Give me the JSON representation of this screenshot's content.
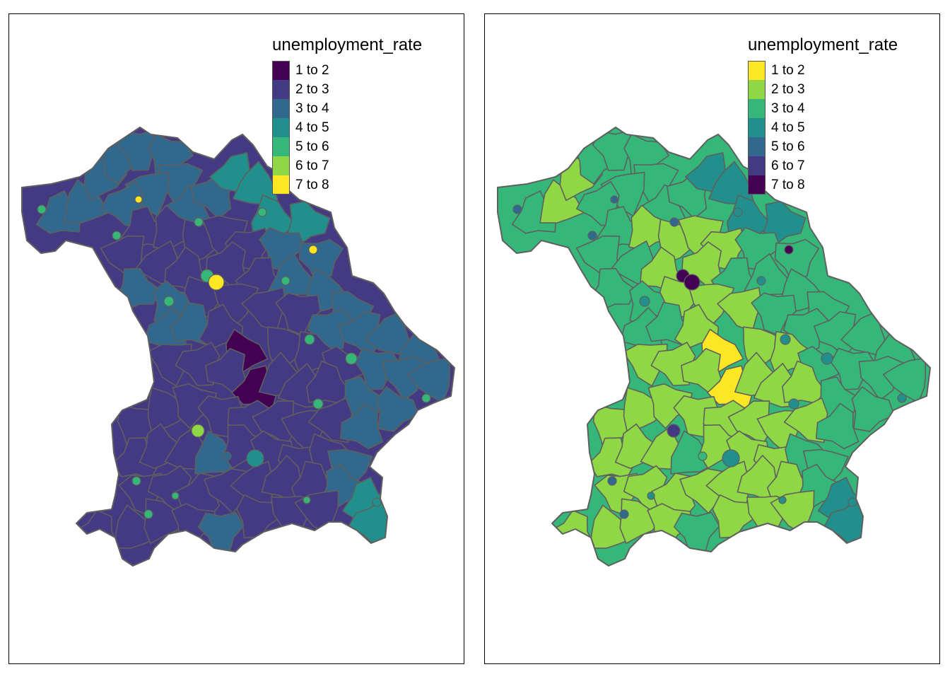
{
  "maps": [
    {
      "id": "left",
      "legend_title": "unemployment_rate",
      "palette": "viridis",
      "classes": [
        {
          "label": "1 to 2",
          "color": "#440154"
        },
        {
          "label": "2 to 3",
          "color": "#443A83"
        },
        {
          "label": "3 to 4",
          "color": "#31688E"
        },
        {
          "label": "4 to 5",
          "color": "#21908C"
        },
        {
          "label": "5 to 6",
          "color": "#35B779"
        },
        {
          "label": "6 to 7",
          "color": "#8FD744"
        },
        {
          "label": "7 to 8",
          "color": "#FDE725"
        }
      ]
    },
    {
      "id": "right",
      "legend_title": "unemployment_rate",
      "palette": "viridis-reversed",
      "classes": [
        {
          "label": "1 to 2",
          "color": "#FDE725"
        },
        {
          "label": "2 to 3",
          "color": "#8FD744"
        },
        {
          "label": "3 to 4",
          "color": "#35B779"
        },
        {
          "label": "4 to 5",
          "color": "#21908C"
        },
        {
          "label": "5 to 6",
          "color": "#31688E"
        },
        {
          "label": "6 to 7",
          "color": "#443A83"
        },
        {
          "label": "7 to 8",
          "color": "#440154"
        }
      ]
    }
  ],
  "border_color": "#5F5F5F"
}
